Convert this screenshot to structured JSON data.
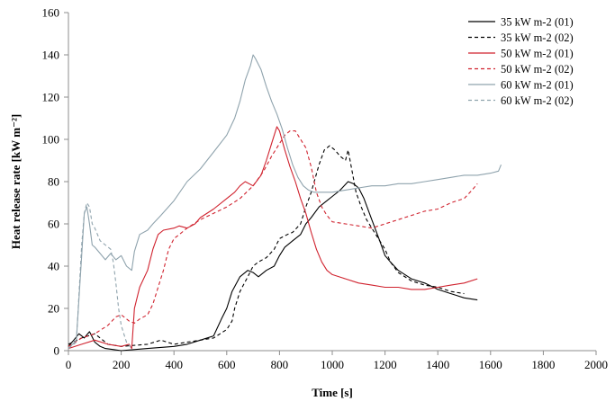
{
  "chart_data": {
    "type": "line",
    "title": "",
    "xlabel": "Time [s]",
    "ylabel": "Heat release rate [kW m⁻²]",
    "xlim": [
      0,
      2000
    ],
    "ylim": [
      0,
      160
    ],
    "xticks": [
      0,
      200,
      400,
      600,
      800,
      1000,
      1200,
      1400,
      1600,
      1800,
      2000
    ],
    "yticks": [
      0,
      20,
      40,
      60,
      80,
      100,
      120,
      140,
      160
    ],
    "grid": false,
    "legend_position": "top-right",
    "series": [
      {
        "name": "35 kW m-2 (01)",
        "color": "#000000",
        "dash": "solid",
        "points": [
          [
            0,
            2
          ],
          [
            20,
            5
          ],
          [
            40,
            8
          ],
          [
            60,
            6
          ],
          [
            80,
            9
          ],
          [
            100,
            4
          ],
          [
            120,
            2
          ],
          [
            140,
            1
          ],
          [
            200,
            0
          ],
          [
            300,
            1
          ],
          [
            400,
            2
          ],
          [
            450,
            3
          ],
          [
            500,
            5
          ],
          [
            550,
            7
          ],
          [
            580,
            15
          ],
          [
            600,
            20
          ],
          [
            620,
            28
          ],
          [
            650,
            35
          ],
          [
            680,
            38
          ],
          [
            700,
            37
          ],
          [
            720,
            35
          ],
          [
            750,
            38
          ],
          [
            780,
            40
          ],
          [
            800,
            45
          ],
          [
            820,
            49
          ],
          [
            850,
            52
          ],
          [
            880,
            55
          ],
          [
            900,
            60
          ],
          [
            920,
            63
          ],
          [
            950,
            68
          ],
          [
            980,
            71
          ],
          [
            1000,
            73
          ],
          [
            1030,
            76
          ],
          [
            1060,
            80
          ],
          [
            1080,
            79
          ],
          [
            1100,
            77
          ],
          [
            1120,
            72
          ],
          [
            1150,
            62
          ],
          [
            1180,
            52
          ],
          [
            1200,
            45
          ],
          [
            1220,
            42
          ],
          [
            1250,
            38
          ],
          [
            1300,
            34
          ],
          [
            1350,
            32
          ],
          [
            1400,
            29
          ],
          [
            1450,
            27
          ],
          [
            1500,
            25
          ],
          [
            1550,
            24
          ]
        ]
      },
      {
        "name": "35 kW m-2 (02)",
        "color": "#000000",
        "dash": "dashed",
        "points": [
          [
            0,
            3
          ],
          [
            50,
            6
          ],
          [
            100,
            8
          ],
          [
            150,
            3
          ],
          [
            200,
            2
          ],
          [
            300,
            3
          ],
          [
            350,
            5
          ],
          [
            400,
            3
          ],
          [
            450,
            4
          ],
          [
            500,
            5
          ],
          [
            550,
            6
          ],
          [
            600,
            10
          ],
          [
            620,
            14
          ],
          [
            630,
            20
          ],
          [
            650,
            28
          ],
          [
            680,
            35
          ],
          [
            700,
            40
          ],
          [
            720,
            42
          ],
          [
            750,
            44
          ],
          [
            780,
            48
          ],
          [
            800,
            53
          ],
          [
            830,
            55
          ],
          [
            850,
            56
          ],
          [
            880,
            60
          ],
          [
            900,
            68
          ],
          [
            920,
            75
          ],
          [
            950,
            88
          ],
          [
            970,
            95
          ],
          [
            990,
            97
          ],
          [
            1010,
            95
          ],
          [
            1030,
            92
          ],
          [
            1050,
            90
          ],
          [
            1060,
            95
          ],
          [
            1075,
            85
          ],
          [
            1090,
            75
          ],
          [
            1110,
            68
          ],
          [
            1130,
            62
          ],
          [
            1150,
            58
          ],
          [
            1180,
            52
          ],
          [
            1200,
            48
          ],
          [
            1220,
            42
          ],
          [
            1250,
            37
          ],
          [
            1300,
            33
          ],
          [
            1350,
            31
          ],
          [
            1400,
            30
          ],
          [
            1450,
            28
          ],
          [
            1500,
            27
          ]
        ]
      },
      {
        "name": "50 kW m-2 (01)",
        "color": "#d0222e",
        "dash": "solid",
        "points": [
          [
            0,
            1
          ],
          [
            50,
            3
          ],
          [
            100,
            5
          ],
          [
            150,
            3
          ],
          [
            200,
            2
          ],
          [
            230,
            3
          ],
          [
            240,
            1
          ],
          [
            250,
            20
          ],
          [
            270,
            30
          ],
          [
            300,
            38
          ],
          [
            320,
            48
          ],
          [
            340,
            55
          ],
          [
            360,
            57
          ],
          [
            400,
            58
          ],
          [
            420,
            59
          ],
          [
            450,
            58
          ],
          [
            480,
            60
          ],
          [
            500,
            63
          ],
          [
            550,
            67
          ],
          [
            600,
            72
          ],
          [
            630,
            75
          ],
          [
            650,
            78
          ],
          [
            670,
            80
          ],
          [
            700,
            78
          ],
          [
            730,
            83
          ],
          [
            750,
            90
          ],
          [
            770,
            98
          ],
          [
            790,
            106
          ],
          [
            800,
            104
          ],
          [
            820,
            95
          ],
          [
            840,
            87
          ],
          [
            860,
            80
          ],
          [
            880,
            72
          ],
          [
            900,
            65
          ],
          [
            920,
            56
          ],
          [
            940,
            48
          ],
          [
            960,
            42
          ],
          [
            980,
            38
          ],
          [
            1000,
            36
          ],
          [
            1050,
            34
          ],
          [
            1100,
            32
          ],
          [
            1150,
            31
          ],
          [
            1200,
            30
          ],
          [
            1250,
            30
          ],
          [
            1300,
            29
          ],
          [
            1350,
            29
          ],
          [
            1400,
            30
          ],
          [
            1450,
            31
          ],
          [
            1500,
            32
          ],
          [
            1550,
            34
          ]
        ]
      },
      {
        "name": "50 kW m-2 (02)",
        "color": "#d0222e",
        "dash": "dashed",
        "points": [
          [
            0,
            2
          ],
          [
            50,
            6
          ],
          [
            100,
            8
          ],
          [
            150,
            12
          ],
          [
            180,
            16
          ],
          [
            200,
            17
          ],
          [
            230,
            14
          ],
          [
            250,
            13
          ],
          [
            270,
            15
          ],
          [
            300,
            17
          ],
          [
            320,
            22
          ],
          [
            340,
            30
          ],
          [
            360,
            38
          ],
          [
            380,
            48
          ],
          [
            400,
            53
          ],
          [
            420,
            55
          ],
          [
            450,
            58
          ],
          [
            500,
            62
          ],
          [
            550,
            65
          ],
          [
            600,
            68
          ],
          [
            650,
            72
          ],
          [
            700,
            78
          ],
          [
            740,
            85
          ],
          [
            770,
            92
          ],
          [
            800,
            98
          ],
          [
            820,
            102
          ],
          [
            840,
            104
          ],
          [
            860,
            104
          ],
          [
            880,
            100
          ],
          [
            900,
            96
          ],
          [
            920,
            87
          ],
          [
            940,
            75
          ],
          [
            960,
            68
          ],
          [
            980,
            64
          ],
          [
            1000,
            61
          ],
          [
            1050,
            60
          ],
          [
            1100,
            59
          ],
          [
            1150,
            58
          ],
          [
            1200,
            60
          ],
          [
            1250,
            62
          ],
          [
            1300,
            64
          ],
          [
            1350,
            66
          ],
          [
            1400,
            67
          ],
          [
            1450,
            70
          ],
          [
            1500,
            72
          ],
          [
            1530,
            76
          ],
          [
            1550,
            79
          ]
        ]
      },
      {
        "name": "60 kW m-2 (01)",
        "color": "#8fa3ad",
        "dash": "solid",
        "points": [
          [
            0,
            1
          ],
          [
            30,
            5
          ],
          [
            50,
            45
          ],
          [
            60,
            65
          ],
          [
            70,
            68
          ],
          [
            80,
            60
          ],
          [
            90,
            50
          ],
          [
            100,
            49
          ],
          [
            120,
            46
          ],
          [
            140,
            43
          ],
          [
            160,
            46
          ],
          [
            180,
            43
          ],
          [
            200,
            45
          ],
          [
            220,
            40
          ],
          [
            240,
            38
          ],
          [
            250,
            47
          ],
          [
            270,
            55
          ],
          [
            300,
            57
          ],
          [
            320,
            60
          ],
          [
            350,
            64
          ],
          [
            400,
            71
          ],
          [
            450,
            80
          ],
          [
            500,
            86
          ],
          [
            550,
            94
          ],
          [
            600,
            102
          ],
          [
            630,
            110
          ],
          [
            650,
            118
          ],
          [
            670,
            128
          ],
          [
            690,
            135
          ],
          [
            700,
            140
          ],
          [
            710,
            138
          ],
          [
            730,
            133
          ],
          [
            750,
            125
          ],
          [
            770,
            118
          ],
          [
            790,
            112
          ],
          [
            810,
            105
          ],
          [
            830,
            96
          ],
          [
            850,
            88
          ],
          [
            870,
            82
          ],
          [
            890,
            78
          ],
          [
            910,
            76
          ],
          [
            930,
            75
          ],
          [
            960,
            75
          ],
          [
            1000,
            75
          ],
          [
            1050,
            76
          ],
          [
            1100,
            77
          ],
          [
            1150,
            78
          ],
          [
            1200,
            78
          ],
          [
            1250,
            79
          ],
          [
            1300,
            79
          ],
          [
            1350,
            80
          ],
          [
            1400,
            81
          ],
          [
            1450,
            82
          ],
          [
            1500,
            83
          ],
          [
            1550,
            83
          ],
          [
            1600,
            84
          ],
          [
            1630,
            85
          ],
          [
            1640,
            88
          ]
        ]
      },
      {
        "name": "60 kW m-2 (02)",
        "color": "#8fa3ad",
        "dash": "dashed",
        "points": [
          [
            0,
            1
          ],
          [
            30,
            4
          ],
          [
            50,
            50
          ],
          [
            60,
            65
          ],
          [
            70,
            70
          ],
          [
            80,
            68
          ],
          [
            90,
            60
          ],
          [
            100,
            58
          ],
          [
            120,
            52
          ],
          [
            140,
            50
          ],
          [
            160,
            48
          ],
          [
            170,
            42
          ],
          [
            180,
            32
          ],
          [
            190,
            20
          ],
          [
            200,
            12
          ],
          [
            210,
            8
          ],
          [
            220,
            4
          ],
          [
            240,
            1
          ]
        ]
      }
    ]
  }
}
